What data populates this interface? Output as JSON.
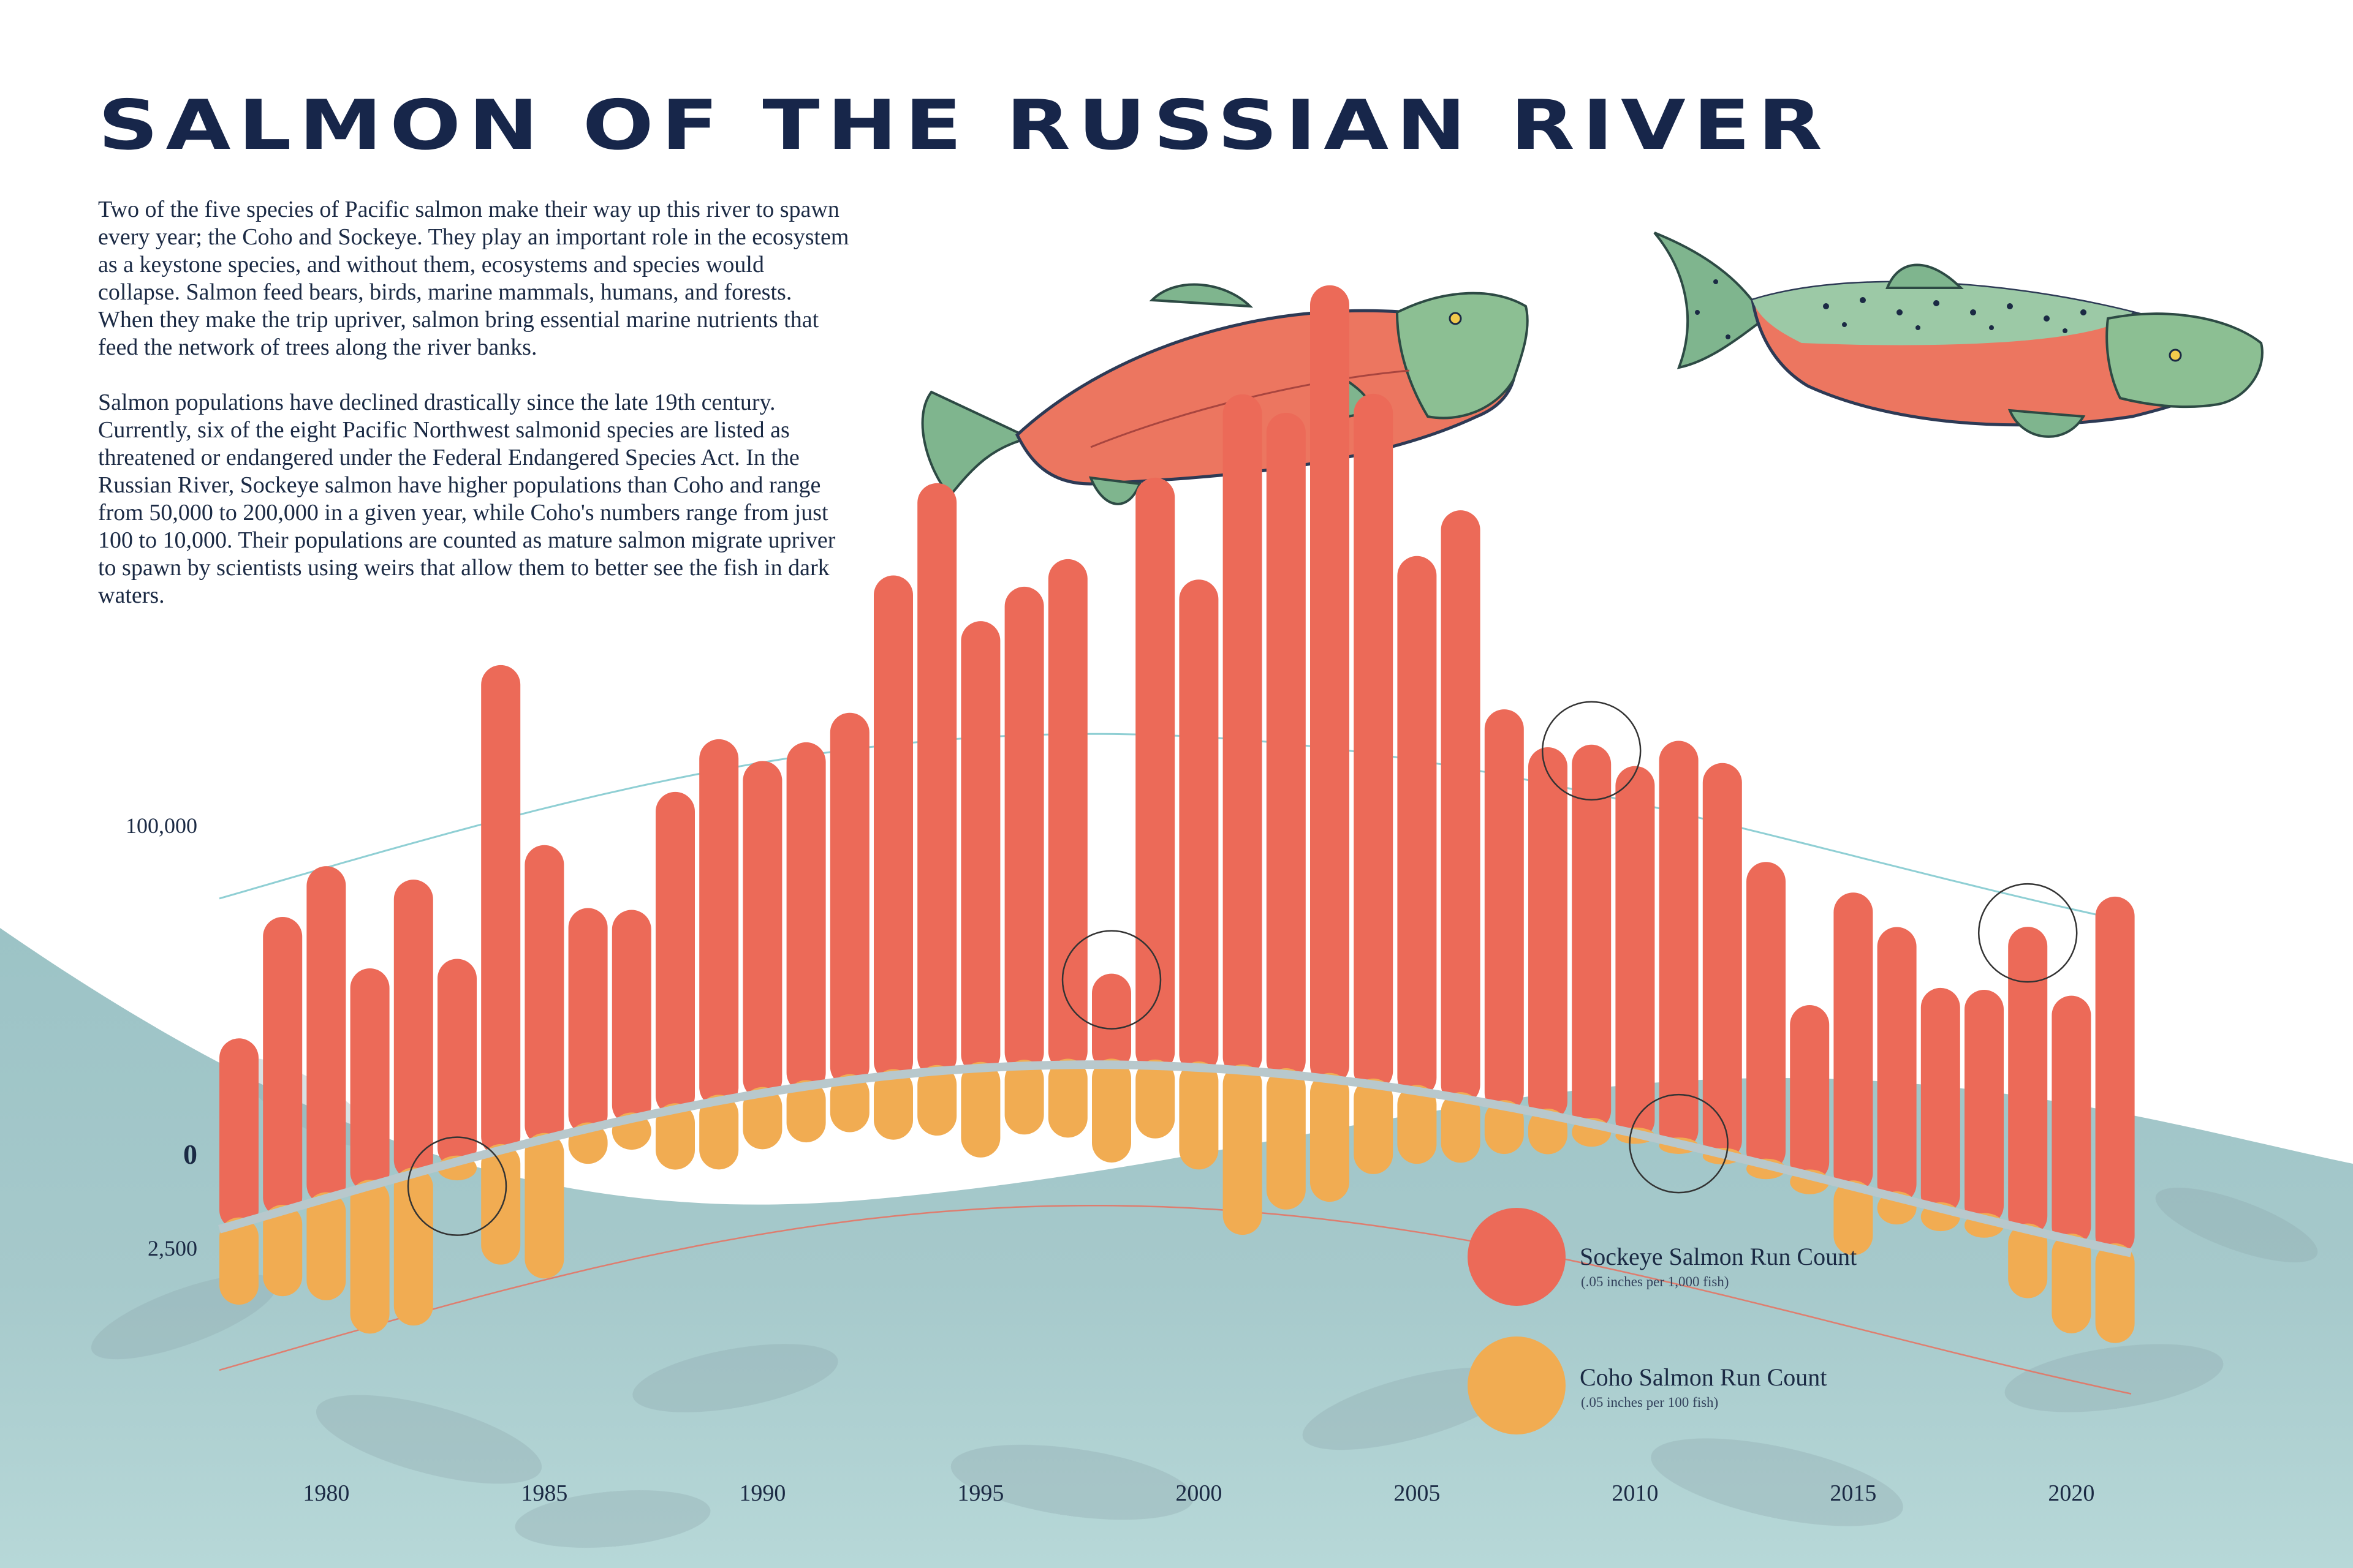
{
  "title": "SALMON OF THE RUSSIAN RIVER",
  "intro": [
    "Two of the five species of Pacific salmon make their way up this river to spawn every year; the Coho and Sockeye. They play an important role in the ecosystem as a keystone species, and without them, ecosystems and species would collapse. Salmon feed bears, birds, marine mammals, humans, and forests. When they make the trip upriver, salmon bring essential marine nutrients that feed the network of trees along the river banks.",
    "Salmon populations have declined drastically since the late 19th century. Currently, six of the eight Pacific Northwest salmonid species are listed as threatened or endangered under the Federal Endangered Species Act. In the Russian River, Sockeye salmon have higher populations than Coho and range from 50,000 to 200,000 in a given year, while Coho's numbers range from just 100 to 10,000. Their populations are counted as mature salmon migrate upriver to spawn by scientists using weirs that allow them to better see the fish in dark waters."
  ],
  "legend": {
    "sockeye_label": "Sockeye Salmon Run Count",
    "sockeye_note": "(.05 inches per 1,000 fish)",
    "coho_label": "Coho Salmon Run Count",
    "coho_note": "(.05 inches per 100 fish)"
  },
  "colors": {
    "sockeye": "#ec6a58",
    "coho": "#f1ac52",
    "water": "#a9cfd0",
    "title": "#17264a",
    "guide_line": "#8fcfd4"
  },
  "chart_data": {
    "type": "bar",
    "title": "SALMON OF THE RUSSIAN RIVER",
    "baseline_label": "0",
    "y_tick_labels": [
      "100,000",
      "0",
      "2,500"
    ],
    "x_tick_labels": [
      "1980",
      "1985",
      "1990",
      "1995",
      "2000",
      "2005",
      "2010",
      "2015",
      "2020"
    ],
    "categories": [
      1978,
      1979,
      1980,
      1981,
      1982,
      1983,
      1984,
      1985,
      1986,
      1987,
      1988,
      1989,
      1990,
      1991,
      1992,
      1993,
      1994,
      1995,
      1996,
      1997,
      1998,
      1999,
      2000,
      2001,
      2002,
      2003,
      2004,
      2005,
      2006,
      2007,
      2008,
      2009,
      2010,
      2011,
      2012,
      2013,
      2014,
      2015,
      2016,
      2017,
      2018,
      2019,
      2020,
      2021
    ],
    "series": [
      {
        "name": "Sockeye Salmon Run Count",
        "direction": "up",
        "values": [
          63000,
          100000,
          113000,
          74000,
          100000,
          69000,
          165000,
          100000,
          75000,
          71000,
          108000,
          123000,
          113000,
          117000,
          125000,
          170000,
          200000,
          152000,
          163000,
          172000,
          31000,
          200000,
          166000,
          230000,
          225000,
          270000,
          235000,
          182000,
          200000,
          135000,
          125000,
          129000,
          125000,
          137000,
          133000,
          103000,
          58000,
          100000,
          92000,
          75000,
          78000,
          103000,
          83000,
          120000
        ],
        "ylim": [
          0,
          300000
        ]
      },
      {
        "name": "Coho Salmon Run Count",
        "direction": "down",
        "values": [
          1800,
          1900,
          2300,
          3400,
          3500,
          300,
          2600,
          3200,
          700,
          600,
          1300,
          1500,
          1200,
          1200,
          1100,
          1400,
          1400,
          2000,
          1500,
          1600,
          2200,
          1600,
          2300,
          3800,
          3100,
          2800,
          2000,
          1600,
          1400,
          1000,
          800,
          400,
          100,
          100,
          100,
          200,
          300,
          1500,
          500,
          400,
          300,
          1500,
          2100,
          2100
        ],
        "ylim": [
          0,
          5000
        ]
      }
    ],
    "annotations": [
      "circle-1983",
      "circle-1998",
      "circle-2009",
      "circle-2011",
      "circle-2019"
    ],
    "grid": false,
    "legend_placement": "bottom-right"
  }
}
